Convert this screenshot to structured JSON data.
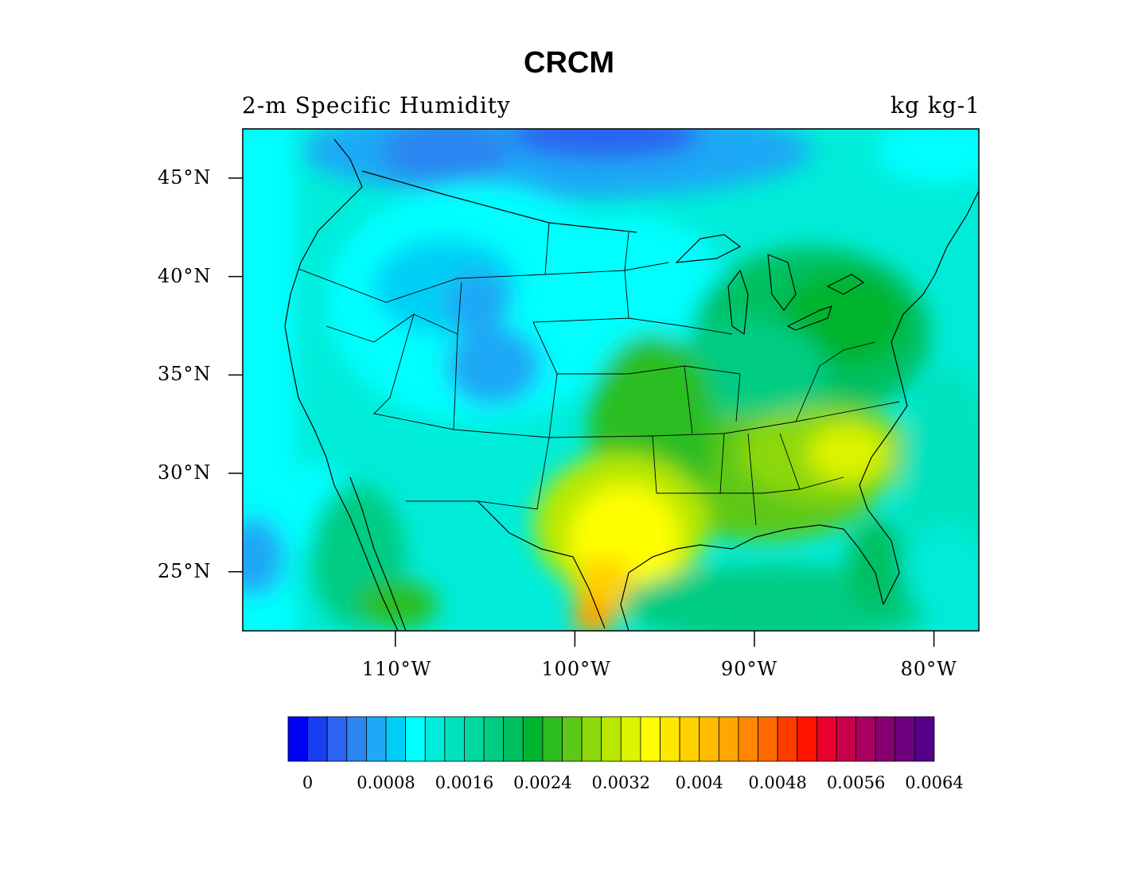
{
  "figure": {
    "title": "CRCM",
    "subtitle_left": "2-m Specific Humidity",
    "subtitle_right": "kg kg-1"
  },
  "map": {
    "type": "filled-contour map",
    "region": "Contiguous United States",
    "projection": "latitude-longitude",
    "lat_range": [
      22,
      47.5
    ],
    "lon_range": [
      -118.5,
      -77.5
    ],
    "lat_ticks": [
      {
        "value": 45,
        "label": "45°N"
      },
      {
        "value": 40,
        "label": "40°N"
      },
      {
        "value": 35,
        "label": "35°N"
      },
      {
        "value": 30,
        "label": "30°N"
      },
      {
        "value": 25,
        "label": "25°N"
      }
    ],
    "lon_ticks": [
      {
        "value": -110,
        "label": "110°W"
      },
      {
        "value": -100,
        "label": "100°W"
      },
      {
        "value": -90,
        "label": "90°W"
      },
      {
        "value": -80,
        "label": "80°W"
      }
    ],
    "overlays": [
      "coastlines",
      "state boundaries",
      "Great Lakes"
    ]
  },
  "colorbar": {
    "orientation": "horizontal",
    "colors": [
      "#0000f5",
      "#1b3df0",
      "#2c64f0",
      "#2c85f0",
      "#1fa8f5",
      "#00cff5",
      "#00ffff",
      "#00ecd9",
      "#00e2bd",
      "#00d8a0",
      "#00cc82",
      "#00c060",
      "#00b42e",
      "#2cbe20",
      "#5ec818",
      "#8cd80c",
      "#b8e800",
      "#dcf400",
      "#ffff00",
      "#ffe800",
      "#ffd200",
      "#ffbc00",
      "#ffa600",
      "#ff8800",
      "#ff6a00",
      "#ff3c00",
      "#ff1400",
      "#e8002e",
      "#c8004c",
      "#a8005e",
      "#880070",
      "#6e007e",
      "#550088"
    ],
    "labels": [
      "0",
      "0.0008",
      "0.0016",
      "0.0024",
      "0.0032",
      "0.004",
      "0.0048",
      "0.0056",
      "0.0064"
    ],
    "label_interval": 4
  }
}
